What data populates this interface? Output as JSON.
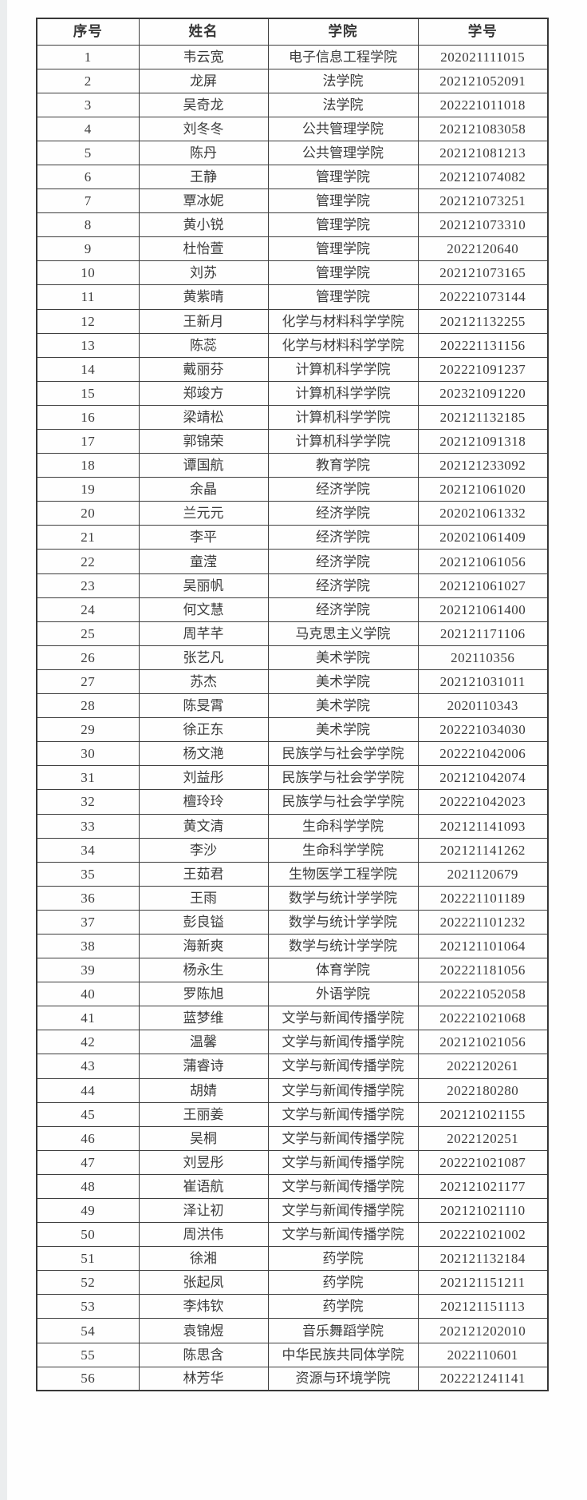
{
  "table": {
    "columns": [
      "序号",
      "姓名",
      "学院",
      "学号"
    ],
    "rows": [
      [
        "1",
        "韦云宽",
        "电子信息工程学院",
        "202021111015"
      ],
      [
        "2",
        "龙屏",
        "法学院",
        "202121052091"
      ],
      [
        "3",
        "吴奇龙",
        "法学院",
        "202221011018"
      ],
      [
        "4",
        "刘冬冬",
        "公共管理学院",
        "202121083058"
      ],
      [
        "5",
        "陈丹",
        "公共管理学院",
        "202121081213"
      ],
      [
        "6",
        "王静",
        "管理学院",
        "202121074082"
      ],
      [
        "7",
        "覃冰妮",
        "管理学院",
        "202121073251"
      ],
      [
        "8",
        "黄小锐",
        "管理学院",
        "202121073310"
      ],
      [
        "9",
        "杜怡萱",
        "管理学院",
        "2022120640"
      ],
      [
        "10",
        "刘苏",
        "管理学院",
        "202121073165"
      ],
      [
        "11",
        "黄紫晴",
        "管理学院",
        "202221073144"
      ],
      [
        "12",
        "王新月",
        "化学与材料科学学院",
        "202121132255"
      ],
      [
        "13",
        "陈蕊",
        "化学与材料科学学院",
        "202221131156"
      ],
      [
        "14",
        "戴丽芬",
        "计算机科学学院",
        "202221091237"
      ],
      [
        "15",
        "郑竣方",
        "计算机科学学院",
        "202321091220"
      ],
      [
        "16",
        "梁靖松",
        "计算机科学学院",
        "202121132185"
      ],
      [
        "17",
        "郭锦荣",
        "计算机科学学院",
        "202121091318"
      ],
      [
        "18",
        "谭国航",
        "教育学院",
        "202121233092"
      ],
      [
        "19",
        "余晶",
        "经济学院",
        "202121061020"
      ],
      [
        "20",
        "兰元元",
        "经济学院",
        "202021061332"
      ],
      [
        "21",
        "李平",
        "经济学院",
        "202021061409"
      ],
      [
        "22",
        "童滢",
        "经济学院",
        "202121061056"
      ],
      [
        "23",
        "吴丽帆",
        "经济学院",
        "202121061027"
      ],
      [
        "24",
        "何文慧",
        "经济学院",
        "202121061400"
      ],
      [
        "25",
        "周芊芊",
        "马克思主义学院",
        "202121171106"
      ],
      [
        "26",
        "张艺凡",
        "美术学院",
        "202110356"
      ],
      [
        "27",
        "苏杰",
        "美术学院",
        "202121031011"
      ],
      [
        "28",
        "陈旻霄",
        "美术学院",
        "2020110343"
      ],
      [
        "29",
        "徐正东",
        "美术学院",
        "202221034030"
      ],
      [
        "30",
        "杨文滟",
        "民族学与社会学学院",
        "202221042006"
      ],
      [
        "31",
        "刘益彤",
        "民族学与社会学学院",
        "202121042074"
      ],
      [
        "32",
        "檀玲玲",
        "民族学与社会学学院",
        "202221042023"
      ],
      [
        "33",
        "黄文清",
        "生命科学学院",
        "202121141093"
      ],
      [
        "34",
        "李沙",
        "生命科学学院",
        "202121141262"
      ],
      [
        "35",
        "王茹君",
        "生物医学工程学院",
        "2021120679"
      ],
      [
        "36",
        "王雨",
        "数学与统计学学院",
        "202221101189"
      ],
      [
        "37",
        "彭良镒",
        "数学与统计学学院",
        "202221101232"
      ],
      [
        "38",
        "海新爽",
        "数学与统计学学院",
        "202121101064"
      ],
      [
        "39",
        "杨永生",
        "体育学院",
        "202221181056"
      ],
      [
        "40",
        "罗陈旭",
        "外语学院",
        "202221052058"
      ],
      [
        "41",
        "蓝梦维",
        "文学与新闻传播学院",
        "202221021068"
      ],
      [
        "42",
        "温馨",
        "文学与新闻传播学院",
        "202121021056"
      ],
      [
        "43",
        "蒲睿诗",
        "文学与新闻传播学院",
        "2022120261"
      ],
      [
        "44",
        "胡婧",
        "文学与新闻传播学院",
        "2022180280"
      ],
      [
        "45",
        "王丽姜",
        "文学与新闻传播学院",
        "202121021155"
      ],
      [
        "46",
        "吴桐",
        "文学与新闻传播学院",
        "2022120251"
      ],
      [
        "47",
        "刘昱彤",
        "文学与新闻传播学院",
        "202221021087"
      ],
      [
        "48",
        "崔语航",
        "文学与新闻传播学院",
        "202121021177"
      ],
      [
        "49",
        "泽让初",
        "文学与新闻传播学院",
        "202121021110"
      ],
      [
        "50",
        "周洪伟",
        "文学与新闻传播学院",
        "202221021002"
      ],
      [
        "51",
        "徐湘",
        "药学院",
        "202121132184"
      ],
      [
        "52",
        "张起凤",
        "药学院",
        "202121151211"
      ],
      [
        "53",
        "李炜钦",
        "药学院",
        "202121151113"
      ],
      [
        "54",
        "袁锦煜",
        "音乐舞蹈学院",
        "202121202010"
      ],
      [
        "55",
        "陈思含",
        "中华民族共同体学院",
        "2022110601"
      ],
      [
        "56",
        "林芳华",
        "资源与环境学院",
        "202221241141"
      ]
    ],
    "colors": {
      "border": "#3e3e3e",
      "text": "#3b3b3b",
      "background": "#fefefe"
    }
  }
}
